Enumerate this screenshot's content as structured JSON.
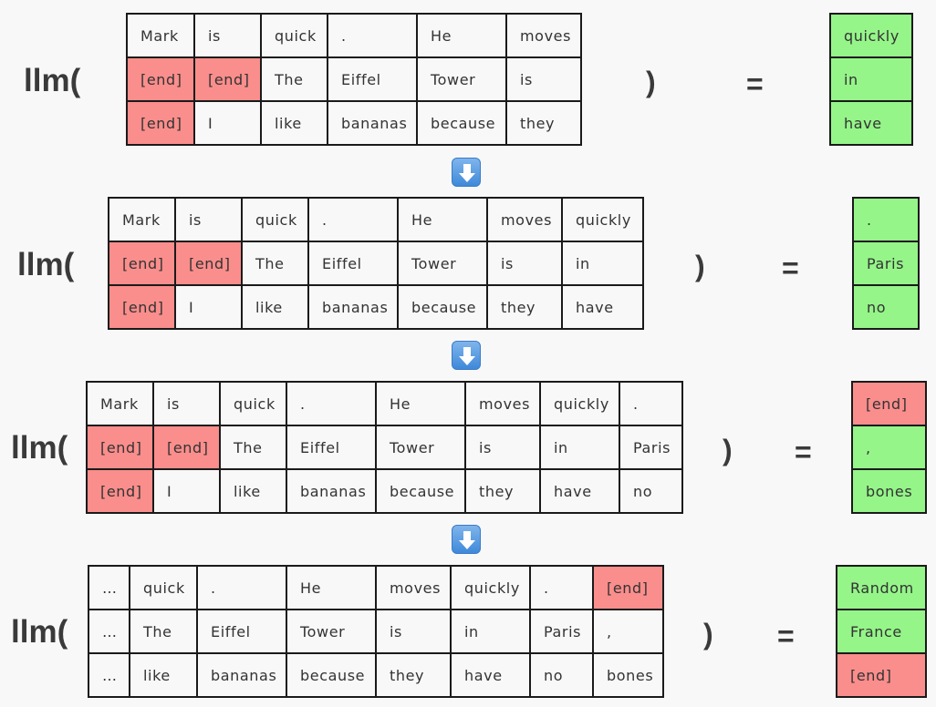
{
  "func_label": "llm(",
  "close_paren": ")",
  "equals": "=",
  "stages": [
    {
      "rows": [
        [
          {
            "t": "Mark"
          },
          {
            "t": "is"
          },
          {
            "t": "quick"
          },
          {
            "t": "."
          },
          {
            "t": "He"
          },
          {
            "t": "moves"
          }
        ],
        [
          {
            "t": "[end]",
            "c": "red"
          },
          {
            "t": "[end]",
            "c": "red"
          },
          {
            "t": "The"
          },
          {
            "t": "Eiffel"
          },
          {
            "t": "Tower"
          },
          {
            "t": "is"
          }
        ],
        [
          {
            "t": "[end]",
            "c": "red"
          },
          {
            "t": "I"
          },
          {
            "t": "like"
          },
          {
            "t": "bananas"
          },
          {
            "t": "because"
          },
          {
            "t": "they"
          }
        ]
      ],
      "outputs": [
        {
          "t": "quickly",
          "c": "green"
        },
        {
          "t": "in",
          "c": "green"
        },
        {
          "t": "have",
          "c": "green"
        }
      ]
    },
    {
      "rows": [
        [
          {
            "t": "Mark"
          },
          {
            "t": "is"
          },
          {
            "t": "quick"
          },
          {
            "t": "."
          },
          {
            "t": "He"
          },
          {
            "t": "moves"
          },
          {
            "t": "quickly"
          }
        ],
        [
          {
            "t": "[end]",
            "c": "red"
          },
          {
            "t": "[end]",
            "c": "red"
          },
          {
            "t": "The"
          },
          {
            "t": "Eiffel"
          },
          {
            "t": "Tower"
          },
          {
            "t": "is"
          },
          {
            "t": "in"
          }
        ],
        [
          {
            "t": "[end]",
            "c": "red"
          },
          {
            "t": "I"
          },
          {
            "t": "like"
          },
          {
            "t": "bananas"
          },
          {
            "t": "because"
          },
          {
            "t": "they"
          },
          {
            "t": "have"
          }
        ]
      ],
      "outputs": [
        {
          "t": ".",
          "c": "green"
        },
        {
          "t": "Paris",
          "c": "green"
        },
        {
          "t": "no",
          "c": "green"
        }
      ]
    },
    {
      "rows": [
        [
          {
            "t": "Mark"
          },
          {
            "t": "is"
          },
          {
            "t": "quick"
          },
          {
            "t": "."
          },
          {
            "t": "He"
          },
          {
            "t": "moves"
          },
          {
            "t": "quickly"
          },
          {
            "t": "."
          }
        ],
        [
          {
            "t": "[end]",
            "c": "red"
          },
          {
            "t": "[end]",
            "c": "red"
          },
          {
            "t": "The"
          },
          {
            "t": "Eiffel"
          },
          {
            "t": "Tower"
          },
          {
            "t": "is"
          },
          {
            "t": "in"
          },
          {
            "t": "Paris"
          }
        ],
        [
          {
            "t": "[end]",
            "c": "red"
          },
          {
            "t": "I"
          },
          {
            "t": "like"
          },
          {
            "t": "bananas"
          },
          {
            "t": "because"
          },
          {
            "t": "they"
          },
          {
            "t": "have"
          },
          {
            "t": "no"
          }
        ]
      ],
      "outputs": [
        {
          "t": "[end]",
          "c": "red"
        },
        {
          "t": ",",
          "c": "green"
        },
        {
          "t": "bones",
          "c": "green"
        }
      ]
    },
    {
      "rows": [
        [
          {
            "t": "…"
          },
          {
            "t": "quick"
          },
          {
            "t": "."
          },
          {
            "t": "He"
          },
          {
            "t": "moves"
          },
          {
            "t": "quickly"
          },
          {
            "t": "."
          },
          {
            "t": "[end]",
            "c": "red"
          }
        ],
        [
          {
            "t": "…"
          },
          {
            "t": "The"
          },
          {
            "t": "Eiffel"
          },
          {
            "t": "Tower"
          },
          {
            "t": "is"
          },
          {
            "t": "in"
          },
          {
            "t": "Paris"
          },
          {
            "t": ","
          }
        ],
        [
          {
            "t": "…"
          },
          {
            "t": "like"
          },
          {
            "t": "bananas"
          },
          {
            "t": "because"
          },
          {
            "t": "they"
          },
          {
            "t": "have"
          },
          {
            "t": "no"
          },
          {
            "t": "bones"
          }
        ]
      ],
      "outputs": [
        {
          "t": "Random",
          "c": "green"
        },
        {
          "t": "France",
          "c": "green"
        },
        {
          "t": "[end]",
          "c": "red"
        }
      ]
    }
  ],
  "arrow_icon": "down-arrow-icon"
}
